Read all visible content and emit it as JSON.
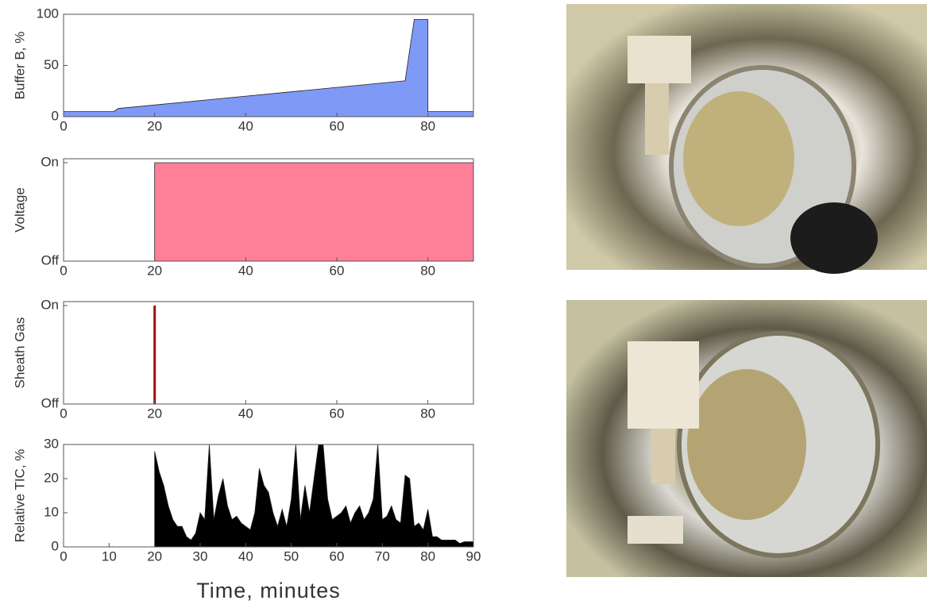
{
  "chart_data": [
    {
      "type": "area",
      "ylabel": "Buffer B, %",
      "color": "#7f99f7",
      "x": [
        0,
        11,
        12,
        75,
        77,
        80,
        80,
        90
      ],
      "values": [
        5,
        5,
        8,
        35,
        95,
        95,
        5,
        5
      ],
      "xlim": [
        0,
        90
      ],
      "ylim": [
        0,
        100
      ],
      "xticks": [
        0,
        20,
        40,
        60,
        80
      ],
      "yticks": [
        0,
        50,
        100
      ]
    },
    {
      "type": "area",
      "ylabel": "Voltage",
      "color": "#ff7f99",
      "x": [
        0,
        20,
        20,
        90
      ],
      "values": [
        0,
        0,
        1,
        1
      ],
      "xlim": [
        0,
        90
      ],
      "ylim": [
        0,
        1.04
      ],
      "xticks": [
        0,
        20,
        40,
        60,
        80
      ],
      "yticks": [
        {
          "value": 0,
          "label": "Off"
        },
        {
          "value": 1,
          "label": "On"
        }
      ]
    },
    {
      "type": "line",
      "ylabel": "Sheath Gas",
      "color": "#a01010",
      "x": [
        20,
        20
      ],
      "values": [
        0,
        1
      ],
      "xlim": [
        0,
        90
      ],
      "ylim": [
        0,
        1.04
      ],
      "xticks": [
        0,
        20,
        40,
        60,
        80
      ],
      "yticks": [
        {
          "value": 0,
          "label": "Off"
        },
        {
          "value": 1,
          "label": "On"
        }
      ]
    },
    {
      "type": "area",
      "ylabel": "Relative TIC, %",
      "xlabel": "Time, minutes",
      "color": "#000000",
      "x": [
        0,
        20,
        20,
        21,
        22,
        23,
        24,
        25,
        26,
        27,
        28,
        29,
        30,
        31,
        32,
        33,
        34,
        35,
        36,
        37,
        38,
        39,
        40,
        41,
        42,
        43,
        44,
        45,
        46,
        47,
        48,
        49,
        50,
        51,
        52,
        53,
        54,
        55,
        56,
        57,
        58,
        59,
        60,
        61,
        62,
        63,
        64,
        65,
        66,
        67,
        68,
        69,
        70,
        71,
        72,
        73,
        74,
        75,
        76,
        77,
        78,
        79,
        80,
        81,
        82,
        83,
        84,
        85,
        86,
        87,
        88,
        89,
        90
      ],
      "values": [
        0,
        0,
        28,
        22,
        18,
        12,
        8,
        6,
        6,
        3,
        2,
        4,
        10,
        8,
        30,
        8,
        15,
        20,
        12,
        8,
        9,
        7,
        6,
        5,
        10,
        23,
        18,
        16,
        10,
        6,
        11,
        6,
        14,
        30,
        8,
        18,
        10,
        20,
        30,
        30,
        14,
        8,
        9,
        10,
        12,
        7,
        10,
        12,
        8,
        10,
        14,
        30,
        8,
        9,
        12,
        8,
        7,
        21,
        20,
        6,
        7,
        5,
        11,
        3,
        3,
        2,
        2,
        2,
        2,
        1,
        1.5,
        1.5,
        1.5
      ],
      "xlim": [
        0,
        90
      ],
      "ylim": [
        0,
        30
      ],
      "xticks": [
        0,
        10,
        20,
        30,
        40,
        50,
        60,
        70,
        80,
        90
      ],
      "yticks": [
        0,
        10,
        20,
        30
      ]
    }
  ]
}
